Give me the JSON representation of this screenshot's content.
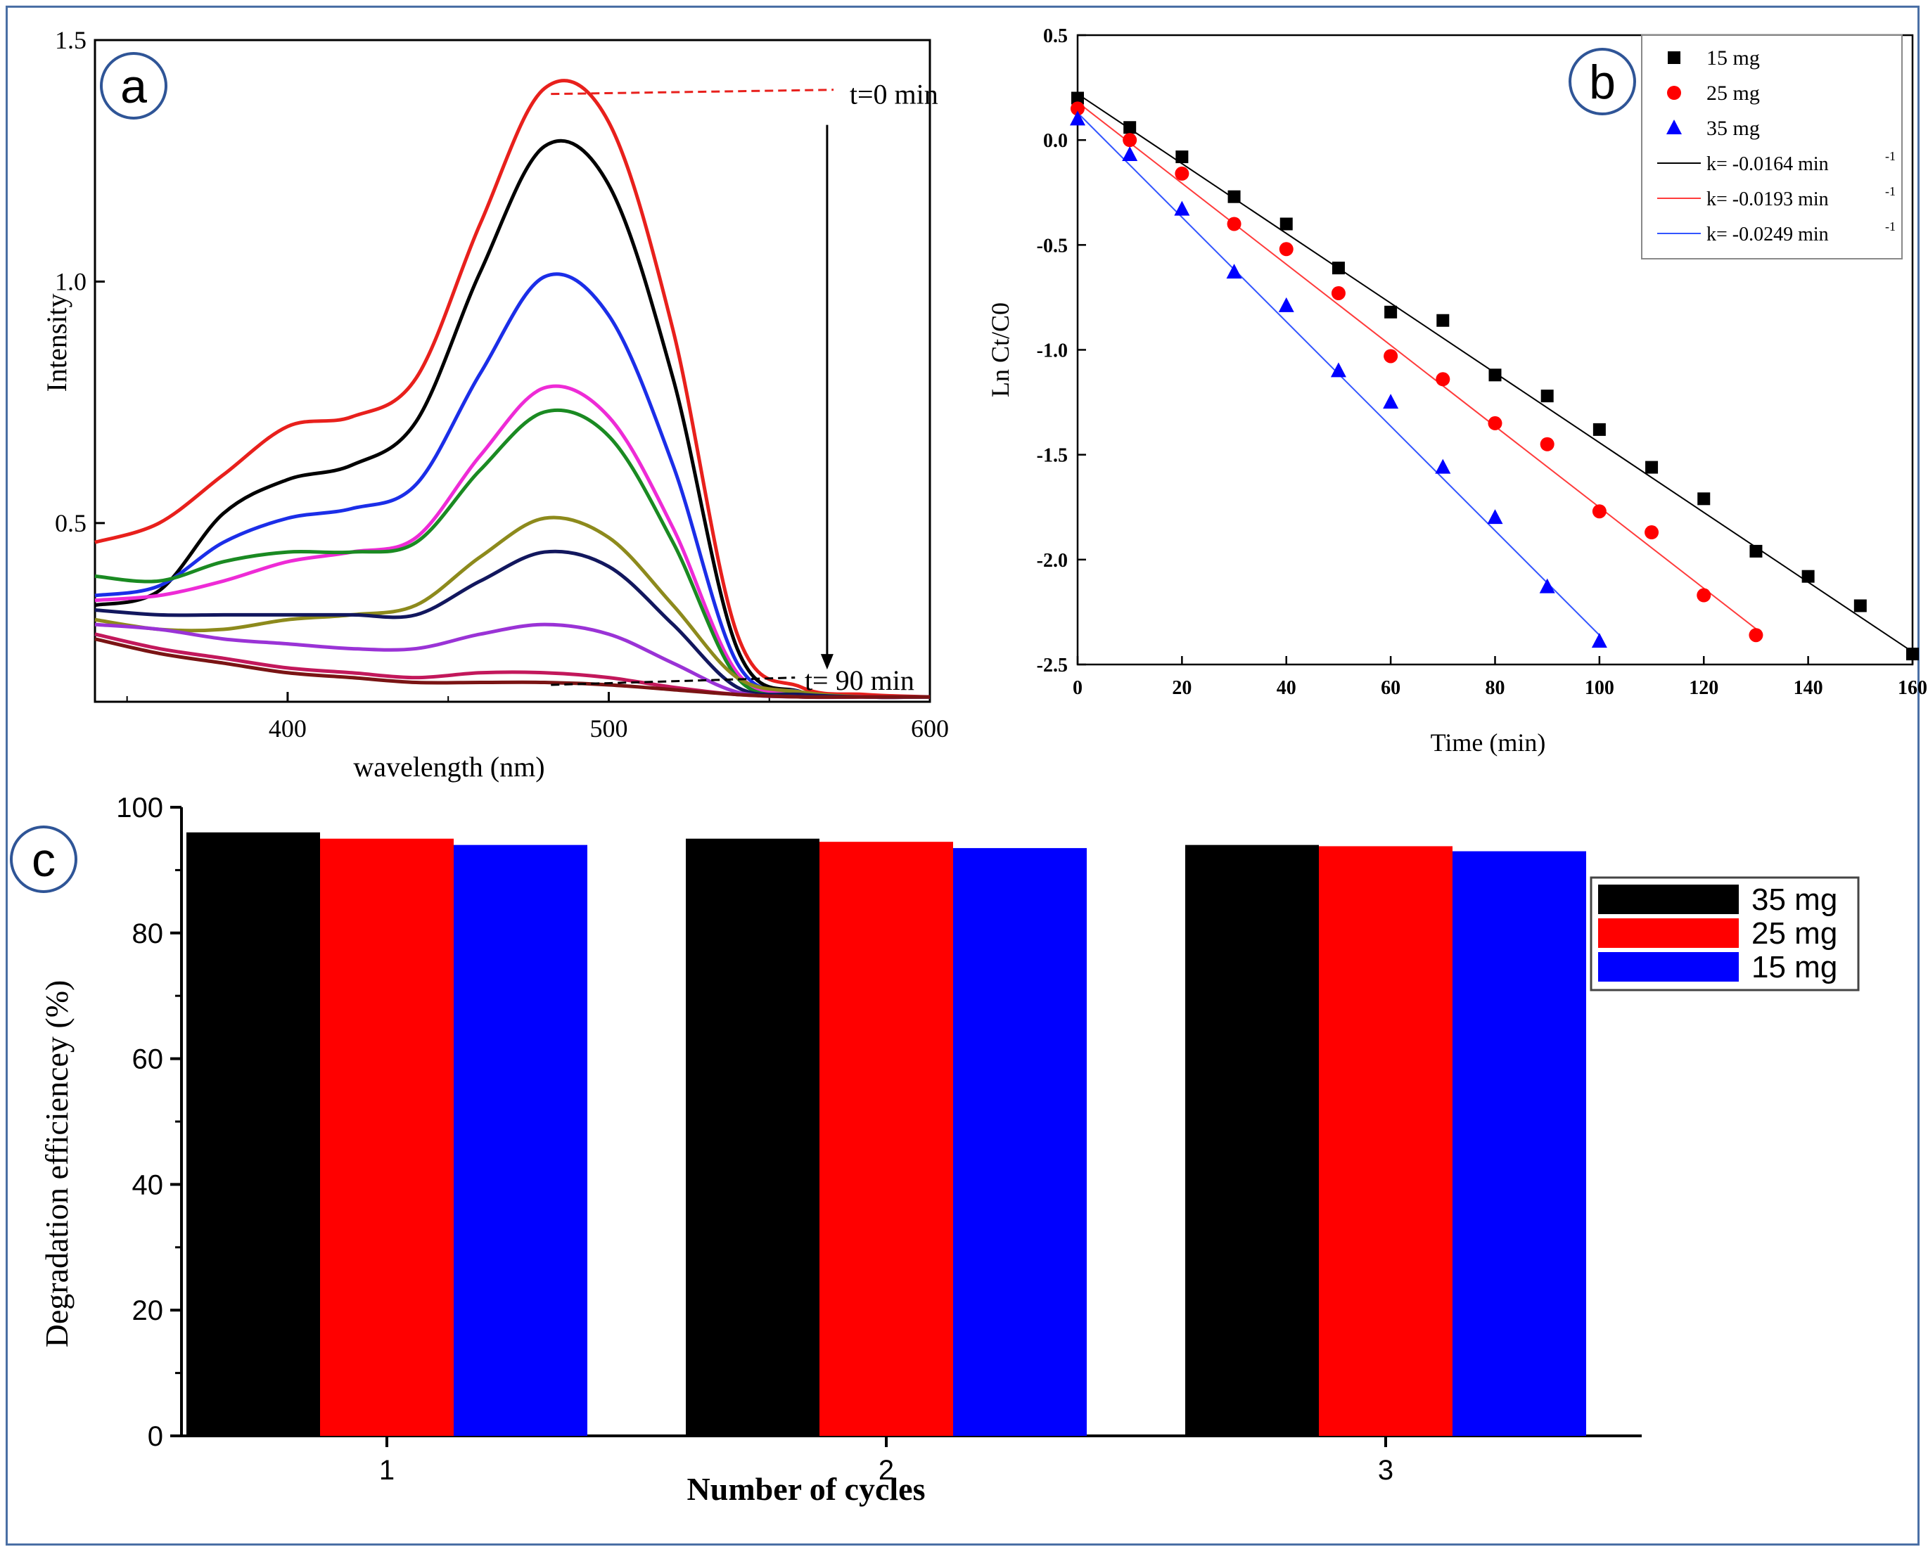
{
  "figure": {
    "panel_labels": [
      "a",
      "b",
      "c"
    ],
    "colors": {
      "frame": "#4a6fa5",
      "panel_circle": "#2f5597"
    }
  },
  "chart_data": [
    {
      "id": "a",
      "type": "line",
      "title": "",
      "xlabel": "wavelength (nm)",
      "ylabel": "Intensity",
      "xlim": [
        340,
        600
      ],
      "ylim": [
        0.13,
        1.5
      ],
      "xticks": [
        400,
        500,
        600
      ],
      "yticks": [
        0.5,
        1.0,
        1.5
      ],
      "xtick_labels": [
        "400",
        "500",
        "600"
      ],
      "ytick_labels": [
        "0.5",
        "1.0",
        "1.5"
      ],
      "annotations": [
        "t=0 min",
        "t= 90 min"
      ],
      "x": [
        340,
        360,
        380,
        400,
        420,
        440,
        460,
        480,
        500,
        520,
        540,
        560,
        580,
        600
      ],
      "series": [
        {
          "color": "#e8201c",
          "values": [
            0.46,
            0.5,
            0.6,
            0.7,
            0.72,
            0.8,
            1.12,
            1.4,
            1.33,
            0.9,
            0.27,
            0.16,
            0.145,
            0.14
          ]
        },
        {
          "color": "#000000",
          "values": [
            0.33,
            0.36,
            0.52,
            0.59,
            0.62,
            0.71,
            1.02,
            1.28,
            1.2,
            0.8,
            0.24,
            0.15,
            0.14,
            0.14
          ]
        },
        {
          "color": "#1b2ee8",
          "values": [
            0.35,
            0.37,
            0.46,
            0.51,
            0.53,
            0.58,
            0.81,
            1.01,
            0.93,
            0.62,
            0.21,
            0.15,
            0.14,
            0.14
          ]
        },
        {
          "color": "#ee2bd6",
          "values": [
            0.34,
            0.35,
            0.38,
            0.42,
            0.44,
            0.47,
            0.64,
            0.78,
            0.72,
            0.49,
            0.19,
            0.15,
            0.14,
            0.14
          ]
        },
        {
          "color": "#1a8a22",
          "values": [
            0.39,
            0.38,
            0.42,
            0.44,
            0.44,
            0.46,
            0.61,
            0.73,
            0.68,
            0.46,
            0.18,
            0.145,
            0.14,
            0.14
          ]
        },
        {
          "color": "#8d8a1c",
          "values": [
            0.3,
            0.28,
            0.28,
            0.3,
            0.31,
            0.33,
            0.43,
            0.51,
            0.47,
            0.33,
            0.18,
            0.15,
            0.14,
            0.14
          ]
        },
        {
          "color": "#12175e",
          "values": [
            0.32,
            0.31,
            0.31,
            0.31,
            0.31,
            0.31,
            0.38,
            0.44,
            0.41,
            0.29,
            0.16,
            0.145,
            0.14,
            0.14
          ]
        },
        {
          "color": "#9a33d6",
          "values": [
            0.29,
            0.28,
            0.26,
            0.25,
            0.24,
            0.24,
            0.27,
            0.29,
            0.27,
            0.21,
            0.15,
            0.14,
            0.14,
            0.14
          ]
        },
        {
          "color": "#c2185b",
          "values": [
            0.27,
            0.24,
            0.22,
            0.2,
            0.19,
            0.18,
            0.19,
            0.19,
            0.18,
            0.16,
            0.145,
            0.14,
            0.14,
            0.14
          ]
        },
        {
          "color": "#7a1414",
          "values": [
            0.26,
            0.23,
            0.21,
            0.19,
            0.18,
            0.17,
            0.17,
            0.17,
            0.165,
            0.155,
            0.145,
            0.14,
            0.14,
            0.14
          ]
        }
      ]
    },
    {
      "id": "b",
      "type": "scatter",
      "title": "",
      "xlabel": "Time (min)",
      "ylabel": "Ln Ct/C0",
      "xlim": [
        0,
        160
      ],
      "ylim": [
        -2.5,
        0.5
      ],
      "xticks": [
        0,
        20,
        40,
        60,
        80,
        100,
        120,
        140,
        160
      ],
      "yticks": [
        0.5,
        0.0,
        -0.5,
        -1.0,
        -1.5,
        -2.0,
        -2.5
      ],
      "xtick_labels": [
        "0",
        "20",
        "40",
        "60",
        "80",
        "100",
        "120",
        "140",
        "160"
      ],
      "ytick_labels": [
        "0.5",
        "0.0",
        "-0.5",
        "-1.0",
        "-1.5",
        "-2.0",
        "-2.5"
      ],
      "legend_position": "top-right",
      "series": [
        {
          "name": "15 mg",
          "marker": "square",
          "color": "#000000",
          "x": [
            0,
            10,
            20,
            30,
            40,
            50,
            60,
            70,
            80,
            90,
            100,
            110,
            120,
            130,
            140,
            150,
            160
          ],
          "values": [
            0.2,
            0.06,
            -0.08,
            -0.27,
            -0.4,
            -0.61,
            -0.82,
            -0.86,
            -1.12,
            -1.22,
            -1.38,
            -1.56,
            -1.71,
            -1.96,
            -2.08,
            -2.22,
            -2.45
          ]
        },
        {
          "name": "25 mg",
          "marker": "circle",
          "color": "#ff0000",
          "x": [
            0,
            10,
            20,
            30,
            40,
            50,
            60,
            70,
            80,
            90,
            100,
            110,
            120,
            130
          ],
          "values": [
            0.15,
            0.0,
            -0.16,
            -0.4,
            -0.52,
            -0.73,
            -1.03,
            -1.14,
            -1.35,
            -1.45,
            -1.77,
            -1.87,
            -2.17,
            -2.36
          ]
        },
        {
          "name": "35 mg",
          "marker": "triangle",
          "color": "#0000ff",
          "x": [
            0,
            10,
            20,
            30,
            40,
            50,
            60,
            70,
            80,
            90,
            100
          ],
          "values": [
            0.1,
            -0.07,
            -0.33,
            -0.63,
            -0.79,
            -1.1,
            -1.25,
            -1.56,
            -1.8,
            -2.13,
            -2.39
          ]
        }
      ],
      "fits": [
        {
          "name": "k= -0.0164 min",
          "superscript": "-1",
          "color": "#000000",
          "x": [
            0,
            160
          ],
          "values": [
            0.22,
            -2.44
          ]
        },
        {
          "name": "k= -0.0193 min",
          "superscript": "-1",
          "color": "#ff3b3b",
          "x": [
            0,
            130
          ],
          "values": [
            0.18,
            -2.33
          ]
        },
        {
          "name": "k= -0.0249 min",
          "superscript": "-1",
          "color": "#3355ff",
          "x": [
            0,
            100
          ],
          "values": [
            0.13,
            -2.36
          ]
        }
      ]
    },
    {
      "id": "c",
      "type": "bar",
      "title": "",
      "xlabel": "Number of cycles",
      "ylabel": "Degradation efficiencey (%)",
      "ylim": [
        0,
        100
      ],
      "yticks": [
        0,
        20,
        40,
        60,
        80,
        100
      ],
      "ytick_labels": [
        "0",
        "20",
        "40",
        "60",
        "80",
        "100"
      ],
      "categories": [
        "1",
        "2",
        "3"
      ],
      "legend_position": "right",
      "series": [
        {
          "name": "35 mg",
          "color": "#000000",
          "values": [
            96,
            95,
            94
          ]
        },
        {
          "name": "25 mg",
          "color": "#ff0000",
          "values": [
            95,
            94.5,
            93.8
          ]
        },
        {
          "name": "15 mg",
          "color": "#0000ff",
          "values": [
            94,
            93.5,
            93
          ]
        }
      ]
    }
  ]
}
